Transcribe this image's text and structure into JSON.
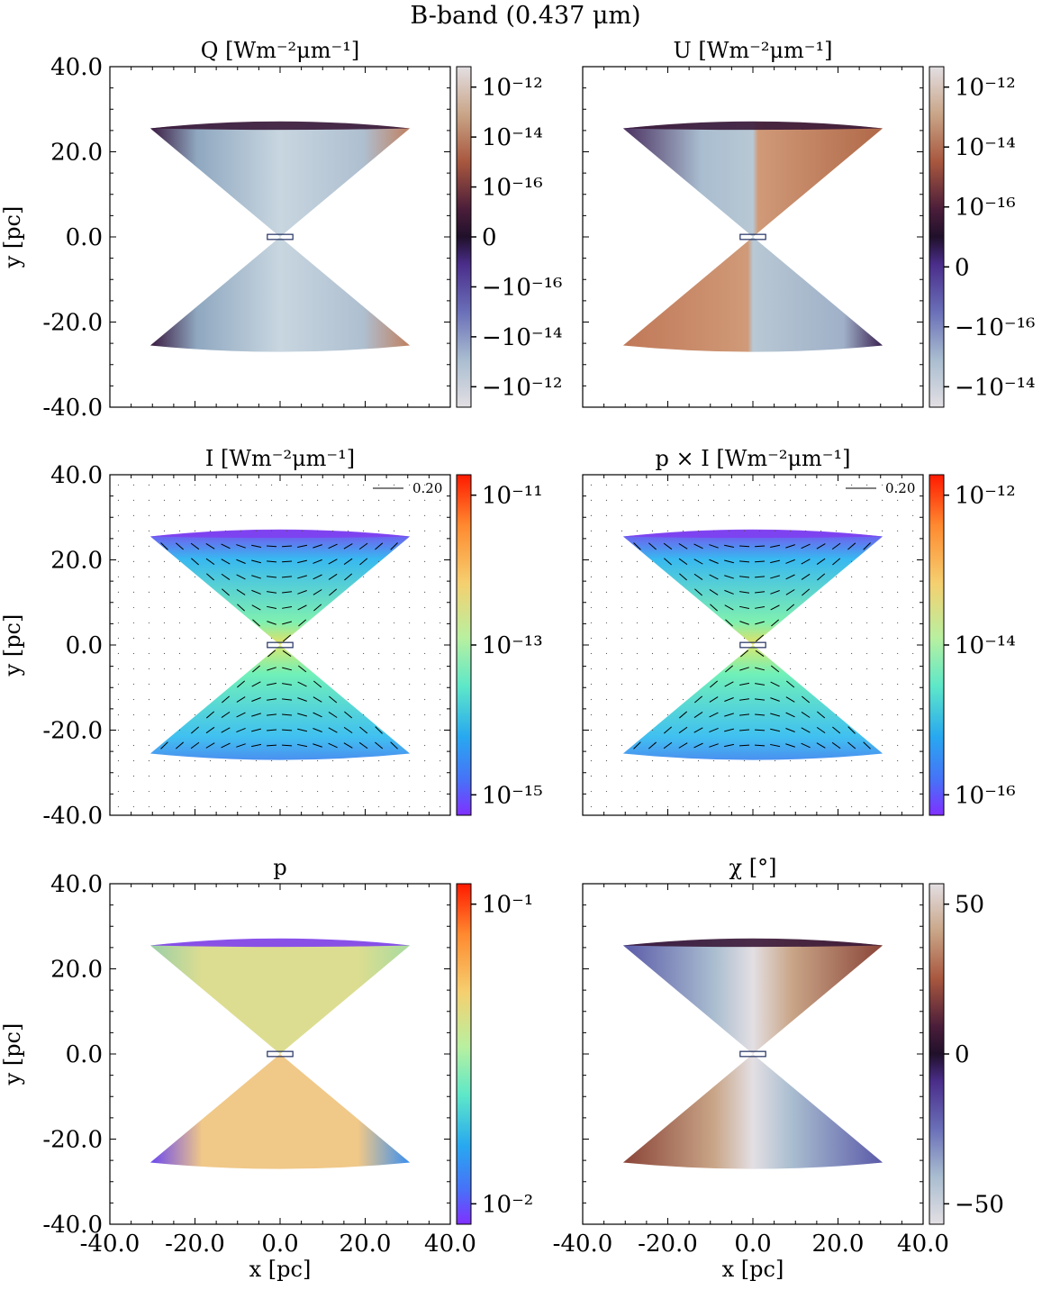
{
  "figure": {
    "suptitle": "B-band (0.437 μm)"
  },
  "chart_data": [
    {
      "type": "heatmap",
      "title": "Q [Wm⁻²μm⁻¹]",
      "xlabel": "",
      "ylabel": "y [pc]",
      "xlim": [
        -40,
        40
      ],
      "ylim": [
        -40,
        40
      ],
      "x_ticks": [],
      "y_ticks": [
        "40.0",
        "20.0",
        "0.0",
        "-20.0",
        "-40.0"
      ],
      "colormap": "twilight",
      "colorbar": {
        "scale": "symlog",
        "labels": [
          "10⁻¹²",
          "10⁻¹⁴",
          "10⁻¹⁶",
          "0",
          "−10⁻¹⁶",
          "−10⁻¹⁴",
          "−10⁻¹²"
        ],
        "colors": [
          "#e3dfe3",
          "#c9a587",
          "#a8573e",
          "#4a1d3a",
          "#20102a",
          "#4a2d8a",
          "#6a6fb8",
          "#a9bdd0",
          "#e3dfe3"
        ]
      },
      "grid": false
    },
    {
      "type": "heatmap",
      "title": "U [Wm⁻²μm⁻¹]",
      "xlabel": "",
      "ylabel": "",
      "xlim": [
        -40,
        40
      ],
      "ylim": [
        -40,
        40
      ],
      "x_ticks": [],
      "y_ticks": [],
      "colormap": "twilight",
      "colorbar": {
        "scale": "symlog",
        "labels": [
          "10⁻¹²",
          "10⁻¹⁴",
          "10⁻¹⁶",
          "0",
          "−10⁻¹⁶",
          "−10⁻¹⁴"
        ],
        "colors": [
          "#e3dfe3",
          "#c9a587",
          "#a8573e",
          "#4a1d3a",
          "#20102a",
          "#4a2d8a",
          "#6a6fb8",
          "#a9bdd0",
          "#e3dfe3"
        ]
      },
      "grid": false
    },
    {
      "type": "heatmap",
      "title": "I [Wm⁻²μm⁻¹]",
      "xlabel": "",
      "ylabel": "y [pc]",
      "xlim": [
        -40,
        40
      ],
      "ylim": [
        -40,
        40
      ],
      "x_ticks": [],
      "y_ticks": [
        "40.0",
        "20.0",
        "0.0",
        "-20.0",
        "-40.0"
      ],
      "colormap": "rainbow",
      "colorbar": {
        "scale": "log",
        "labels": [
          "10⁻¹¹",
          "10⁻¹³",
          "10⁻¹⁵"
        ],
        "colors": [
          "#ff1a00",
          "#ff8a30",
          "#f5d070",
          "#b8f0a0",
          "#5ee8c8",
          "#28a8f0",
          "#4870f8",
          "#8030ff"
        ]
      },
      "vector_legend": "0.20",
      "grid": false
    },
    {
      "type": "heatmap",
      "title": "p × I [Wm⁻²μm⁻¹]",
      "xlabel": "",
      "ylabel": "",
      "xlim": [
        -40,
        40
      ],
      "ylim": [
        -40,
        40
      ],
      "x_ticks": [],
      "y_ticks": [],
      "colormap": "rainbow",
      "colorbar": {
        "scale": "log",
        "labels": [
          "10⁻¹²",
          "10⁻¹⁴",
          "10⁻¹⁶"
        ],
        "colors": [
          "#ff1a00",
          "#ff8a30",
          "#f5d070",
          "#b8f0a0",
          "#5ee8c8",
          "#28a8f0",
          "#4870f8",
          "#8030ff"
        ]
      },
      "vector_legend": "0.20",
      "grid": false
    },
    {
      "type": "heatmap",
      "title": "p",
      "xlabel": "x [pc]",
      "ylabel": "y [pc]",
      "xlim": [
        -40,
        40
      ],
      "ylim": [
        -40,
        40
      ],
      "x_ticks": [
        "-40.0",
        "-20.0",
        "0.0",
        "20.0",
        "40.0"
      ],
      "y_ticks": [
        "40.0",
        "20.0",
        "0.0",
        "-20.0",
        "-40.0"
      ],
      "colormap": "rainbow",
      "colorbar": {
        "scale": "log",
        "labels": [
          "10⁻¹",
          "10⁻²"
        ],
        "colors": [
          "#ff1a00",
          "#ff8a30",
          "#f5d070",
          "#b8f0a0",
          "#5ee8c8",
          "#28a8f0",
          "#4870f8",
          "#8030ff"
        ]
      },
      "grid": false
    },
    {
      "type": "heatmap",
      "title": "χ [°]",
      "xlabel": "x [pc]",
      "ylabel": "",
      "xlim": [
        -40,
        40
      ],
      "ylim": [
        -40,
        40
      ],
      "x_ticks": [
        "-40.0",
        "-20.0",
        "0.0",
        "20.0",
        "40.0"
      ],
      "y_ticks": [],
      "colormap": "twilight",
      "colorbar": {
        "scale": "linear",
        "range": [
          -90,
          90
        ],
        "labels": [
          "50",
          "0",
          "−50"
        ],
        "colors": [
          "#e3dfe3",
          "#c9a587",
          "#a8573e",
          "#4a1d3a",
          "#20102a",
          "#4a2d8a",
          "#6a6fb8",
          "#a9bdd0",
          "#e3dfe3"
        ]
      },
      "grid": false
    }
  ]
}
